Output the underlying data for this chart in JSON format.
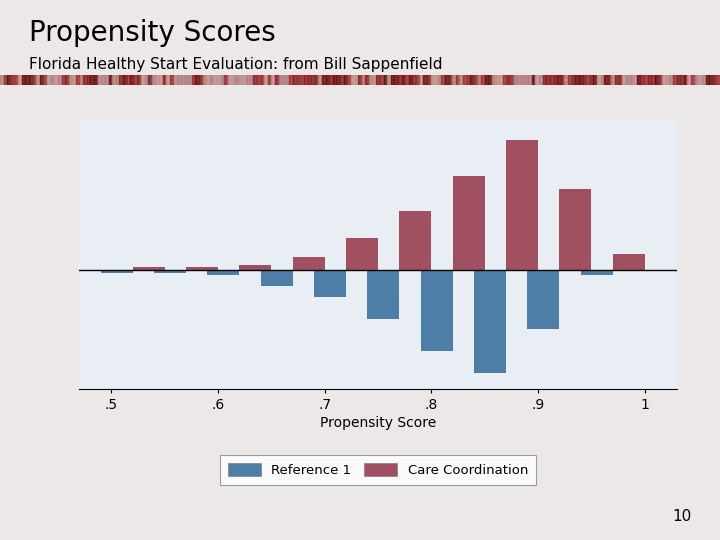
{
  "title": "Propensity Scores",
  "subtitle": "Florida Healthy Start Evaluation: from Bill Sappenfield",
  "xlabel": "Propensity Score",
  "xticks": [
    0.5,
    0.6,
    0.7,
    0.8,
    0.9,
    1.0
  ],
  "xticklabels": [
    ".5",
    ".6",
    ".7",
    ".8",
    ".9",
    "1"
  ],
  "bar_centers": [
    0.52,
    0.57,
    0.62,
    0.67,
    0.72,
    0.77,
    0.82,
    0.87,
    0.92,
    0.97
  ],
  "ref1_values": [
    -0.01,
    -0.01,
    -0.02,
    -0.06,
    -0.1,
    -0.18,
    -0.3,
    -0.38,
    -0.22,
    -0.02
  ],
  "care_values": [
    0.01,
    0.01,
    0.02,
    0.05,
    0.12,
    0.22,
    0.35,
    0.48,
    0.3,
    0.06
  ],
  "bar_width": 0.03,
  "ref1_color": "#4d7ea8",
  "care_color": "#a05060",
  "bg_outer": "#ede8e8",
  "bg_panel": "#dce6ee",
  "bg_inner": "#e8eef4",
  "line_color": "#000000",
  "legend_ref1": "Reference 1",
  "legend_care": "Care Coordination",
  "xlim": [
    0.47,
    1.03
  ],
  "ylim": [
    -0.44,
    0.56
  ],
  "title_fontsize": 20,
  "subtitle_fontsize": 11,
  "tick_fontsize": 10,
  "xlabel_fontsize": 10,
  "stripe_colors": [
    "#8b2020",
    "#c09090",
    "#6b1010",
    "#b08080",
    "#9b3030"
  ],
  "panel_border_color": "#b0b8c0"
}
